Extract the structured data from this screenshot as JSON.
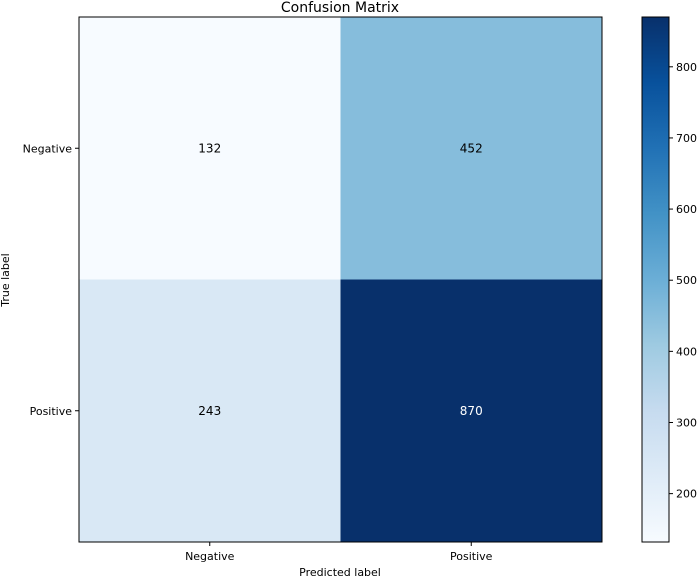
{
  "chart_data": {
    "type": "heatmap",
    "title": "Confusion Matrix",
    "xlabel": "Predicted label",
    "ylabel": "True label",
    "x_categories": [
      "Negative",
      "Positive"
    ],
    "y_categories": [
      "Negative",
      "Positive"
    ],
    "values": [
      [
        132,
        452
      ],
      [
        243,
        870
      ]
    ],
    "colormap": "Blues",
    "color_range": [
      132,
      870
    ],
    "colorbar": {
      "ticks": [
        200,
        300,
        400,
        500,
        600,
        700,
        800
      ]
    },
    "text_colors": {
      "dark": "#000000",
      "light": "#ffffff"
    },
    "grid": false
  }
}
